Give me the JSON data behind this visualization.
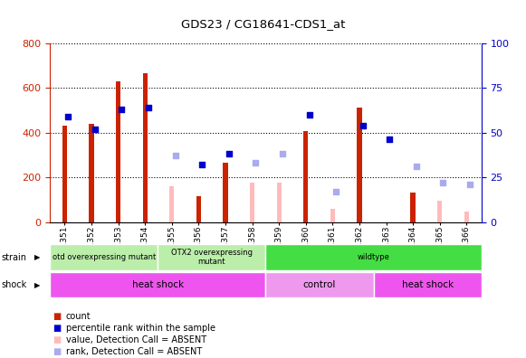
{
  "title": "GDS23 / CG18641-CDS1_at",
  "samples": [
    "GSM1351",
    "GSM1352",
    "GSM1353",
    "GSM1354",
    "GSM1355",
    "GSM1356",
    "GSM1357",
    "GSM1358",
    "GSM1359",
    "GSM1360",
    "GSM1361",
    "GSM1362",
    "GSM1363",
    "GSM1364",
    "GSM1365",
    "GSM1366"
  ],
  "count_values": [
    430,
    440,
    630,
    665,
    null,
    115,
    265,
    null,
    null,
    405,
    null,
    510,
    null,
    130,
    null,
    null
  ],
  "count_absent_values": [
    null,
    null,
    null,
    null,
    160,
    null,
    null,
    175,
    175,
    null,
    60,
    null,
    null,
    null,
    95,
    45
  ],
  "percentile_rank": [
    59,
    52,
    63,
    64,
    null,
    32,
    38,
    null,
    null,
    60,
    null,
    54,
    46,
    null,
    null,
    null
  ],
  "percentile_absent": [
    null,
    null,
    null,
    null,
    37,
    null,
    null,
    33,
    38,
    null,
    17,
    null,
    null,
    31,
    22,
    21
  ],
  "ylim_left": [
    0,
    800
  ],
  "ylim_right": [
    0,
    100
  ],
  "yticks_left": [
    0,
    200,
    400,
    600,
    800
  ],
  "yticks_right": [
    0,
    25,
    50,
    75,
    100
  ],
  "bar_color_present": "#cc2200",
  "bar_color_absent": "#ffbbbb",
  "dot_color_present": "#0000cc",
  "dot_color_absent": "#aaaaee",
  "strain_groups": [
    {
      "label": "otd overexpressing mutant",
      "start": 0,
      "end": 4,
      "color": "#bbeeaa"
    },
    {
      "label": "OTX2 overexpressing\nmutant",
      "start": 4,
      "end": 8,
      "color": "#bbeeaa"
    },
    {
      "label": "wildtype",
      "start": 8,
      "end": 16,
      "color": "#44dd44"
    }
  ],
  "shock_groups": [
    {
      "label": "heat shock",
      "start": 0,
      "end": 8,
      "color": "#ee55ee"
    },
    {
      "label": "control",
      "start": 8,
      "end": 12,
      "color": "#ee99ee"
    },
    {
      "label": "heat shock",
      "start": 12,
      "end": 16,
      "color": "#ee55ee"
    }
  ],
  "plot_bg": "#ffffff",
  "fig_bg": "#ffffff"
}
